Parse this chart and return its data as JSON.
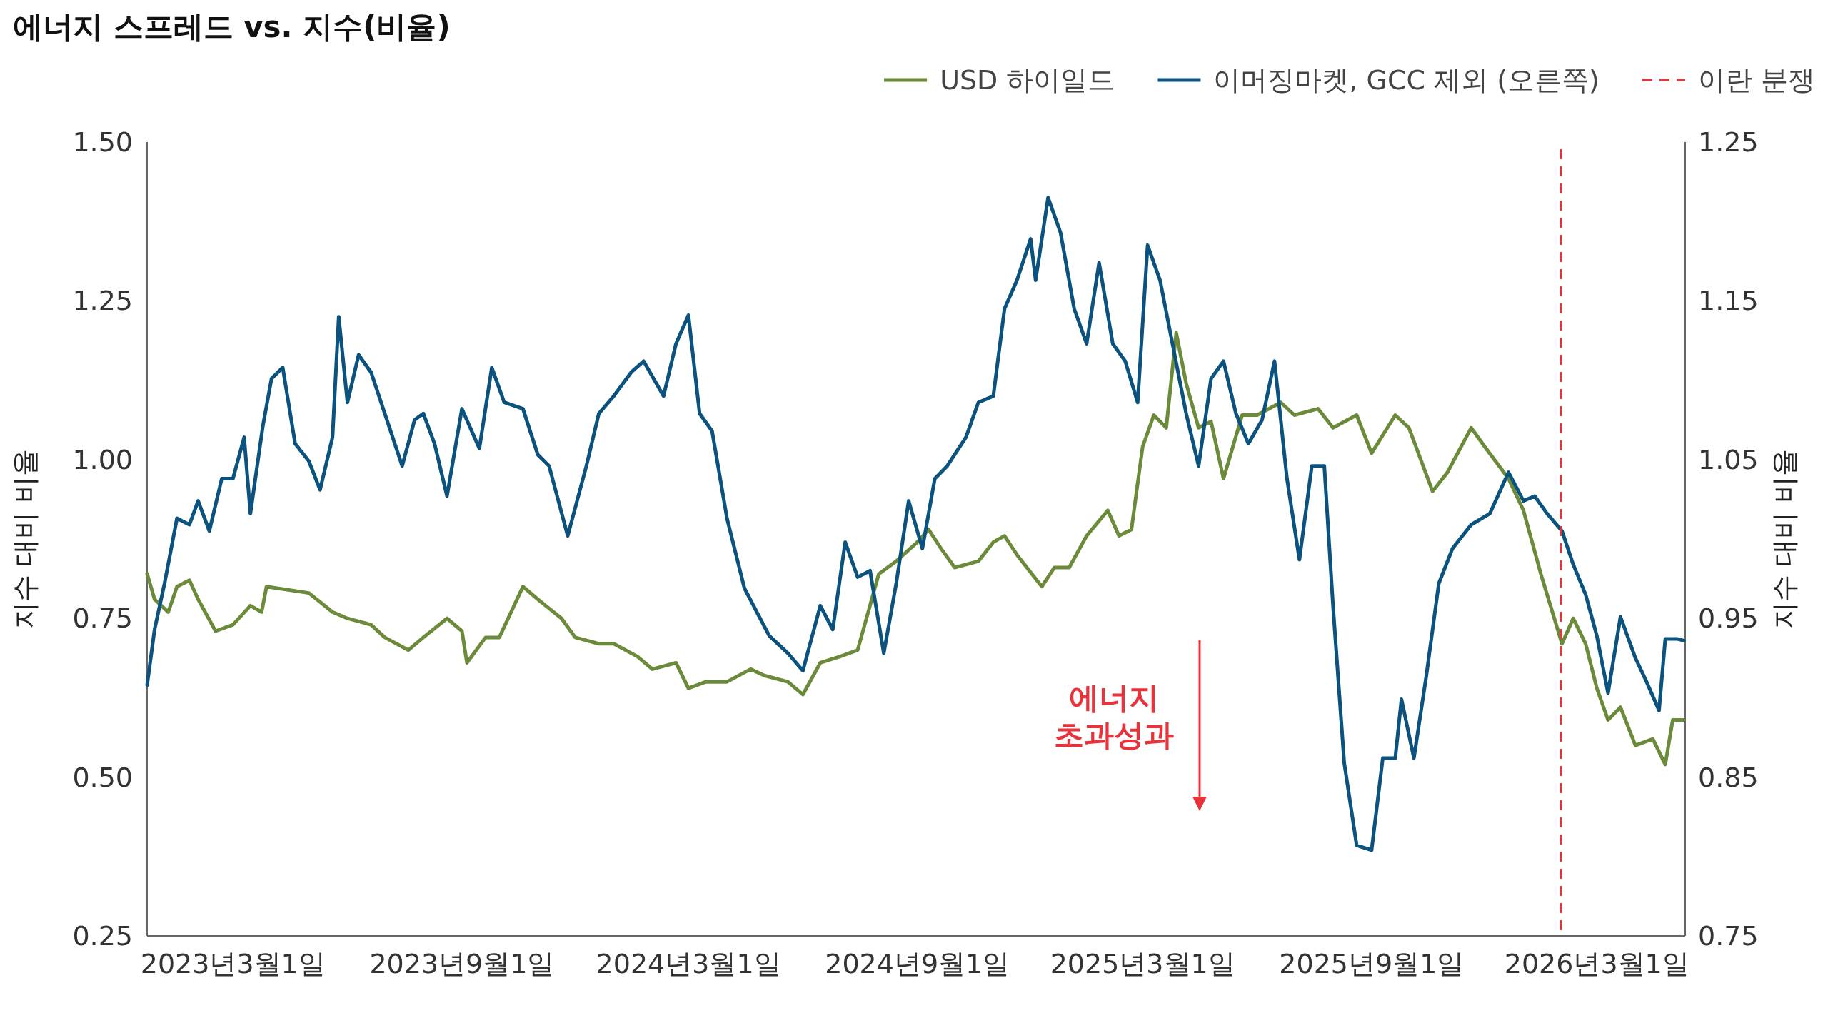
{
  "chart_data": {
    "type": "line",
    "title": "에너지 스프레드 vs. 지수(비율)",
    "ylabel": "지수 대비 비율",
    "y2label": "지수 대비 비율",
    "xlim": [
      "2022-12-22",
      "2026-05-11"
    ],
    "xticks": [
      {
        "value": "2023-03-01",
        "label": "2023년3월1일"
      },
      {
        "value": "2023-09-01",
        "label": "2023년9월1일"
      },
      {
        "value": "2024-03-01",
        "label": "2024년3월1일"
      },
      {
        "value": "2024-09-01",
        "label": "2024년9월1일"
      },
      {
        "value": "2025-03-01",
        "label": "2025년3월1일"
      },
      {
        "value": "2025-09-01",
        "label": "2025년9월1일"
      },
      {
        "value": "2026-03-01",
        "label": "2026년3월1일"
      }
    ],
    "ylim": [
      0.25,
      1.5
    ],
    "yticks": [
      0.25,
      {
        "value": 0.5,
        "label": "0.50"
      },
      0.75,
      {
        "value": 1.0,
        "label": "1.00"
      },
      1.25,
      {
        "value": 1.5,
        "label": "1.50"
      }
    ],
    "y2lim": [
      0.75,
      1.25
    ],
    "y2ticks": [
      0.75,
      0.85,
      0.95,
      1.05,
      1.15,
      1.25
    ],
    "legend": "top right",
    "series": [
      {
        "name": "USD 하이일드",
        "color": "#6b8a3a",
        "x": [
          "2022-12-22",
          "2022-12-28",
          "2023-01-08",
          "2023-01-15",
          "2023-01-25",
          "2023-02-01",
          "2023-02-15",
          "2023-03-01",
          "2023-03-15",
          "2023-03-24",
          "2023-03-28",
          "2023-05-01",
          "2023-05-20",
          "2023-06-01",
          "2023-06-20",
          "2023-07-01",
          "2023-07-20",
          "2023-08-01",
          "2023-08-20",
          "2023-09-01",
          "2023-09-05",
          "2023-09-20",
          "2023-10-01",
          "2023-10-20",
          "2023-11-01",
          "2023-11-20",
          "2023-12-01",
          "2023-12-20",
          "2024-01-01",
          "2024-01-20",
          "2024-02-01",
          "2024-02-20",
          "2024-03-01",
          "2024-03-15",
          "2024-04-01",
          "2024-04-20",
          "2024-05-01",
          "2024-05-20",
          "2024-06-01",
          "2024-06-15",
          "2024-07-01",
          "2024-07-15",
          "2024-08-01",
          "2024-08-15",
          "2024-09-01",
          "2024-09-10",
          "2024-09-20",
          "2024-10-01",
          "2024-10-20",
          "2024-11-01",
          "2024-11-10",
          "2024-11-20",
          "2024-12-10",
          "2024-12-20",
          "2025-01-01",
          "2025-01-15",
          "2025-02-01",
          "2025-02-10",
          "2025-02-20",
          "2025-03-01",
          "2025-03-10",
          "2025-03-20",
          "2025-03-28",
          "2025-04-05",
          "2025-04-15",
          "2025-04-25",
          "2025-05-05",
          "2025-05-20",
          "2025-06-01",
          "2025-06-20",
          "2025-07-01",
          "2025-07-20",
          "2025-08-01",
          "2025-08-20",
          "2025-09-01",
          "2025-09-20",
          "2025-10-01",
          "2025-10-20",
          "2025-11-01",
          "2025-11-20",
          "2025-12-01",
          "2025-12-20",
          "2026-01-01",
          "2026-01-15",
          "2026-02-01",
          "2026-02-10",
          "2026-02-20",
          "2026-03-01",
          "2026-03-10",
          "2026-03-20",
          "2026-04-01",
          "2026-04-15",
          "2026-04-25",
          "2026-05-01",
          "2026-05-10"
        ],
        "values": [
          0.82,
          0.78,
          0.76,
          0.8,
          0.81,
          0.78,
          0.73,
          0.74,
          0.77,
          0.76,
          0.8,
          0.79,
          0.76,
          0.75,
          0.74,
          0.72,
          0.7,
          0.72,
          0.75,
          0.73,
          0.68,
          0.72,
          0.72,
          0.8,
          0.78,
          0.75,
          0.72,
          0.71,
          0.71,
          0.69,
          0.67,
          0.68,
          0.64,
          0.65,
          0.65,
          0.67,
          0.66,
          0.65,
          0.63,
          0.68,
          0.69,
          0.7,
          0.82,
          0.84,
          0.87,
          0.89,
          0.86,
          0.83,
          0.84,
          0.87,
          0.88,
          0.85,
          0.8,
          0.83,
          0.83,
          0.88,
          0.92,
          0.88,
          0.89,
          1.02,
          1.07,
          1.05,
          1.2,
          1.12,
          1.05,
          1.06,
          0.97,
          1.07,
          1.07,
          1.09,
          1.07,
          1.08,
          1.05,
          1.07,
          1.01,
          1.07,
          1.05,
          0.95,
          0.98,
          1.05,
          1.02,
          0.97,
          0.92,
          0.82,
          0.71,
          0.75,
          0.71,
          0.64,
          0.59,
          0.61,
          0.55,
          0.56,
          0.52,
          0.59,
          0.59
        ]
      },
      {
        "name": "이머징마켓, GCC 제외 (오른쪽)",
        "color": "#0b527f",
        "axis": "y2",
        "x": [
          "2022-12-22",
          "2022-12-28",
          "2023-01-05",
          "2023-01-15",
          "2023-01-25",
          "2023-02-01",
          "2023-02-10",
          "2023-02-20",
          "2023-03-01",
          "2023-03-10",
          "2023-03-15",
          "2023-03-25",
          "2023-04-01",
          "2023-04-10",
          "2023-04-20",
          "2023-05-01",
          "2023-05-10",
          "2023-05-20",
          "2023-05-25",
          "2023-06-01",
          "2023-06-10",
          "2023-06-20",
          "2023-07-01",
          "2023-07-15",
          "2023-07-25",
          "2023-08-01",
          "2023-08-10",
          "2023-08-20",
          "2023-09-01",
          "2023-09-15",
          "2023-09-25",
          "2023-10-05",
          "2023-10-20",
          "2023-11-01",
          "2023-11-10",
          "2023-11-25",
          "2023-12-10",
          "2023-12-20",
          "2024-01-01",
          "2024-01-15",
          "2024-01-25",
          "2024-02-10",
          "2024-02-20",
          "2024-03-01",
          "2024-03-10",
          "2024-03-20",
          "2024-04-01",
          "2024-04-15",
          "2024-04-25",
          "2024-05-05",
          "2024-05-20",
          "2024-06-01",
          "2024-06-15",
          "2024-06-25",
          "2024-07-05",
          "2024-07-15",
          "2024-07-25",
          "2024-08-05",
          "2024-08-15",
          "2024-08-25",
          "2024-09-05",
          "2024-09-15",
          "2024-09-25",
          "2024-10-10",
          "2024-10-20",
          "2024-11-01",
          "2024-11-10",
          "2024-11-20",
          "2024-12-01",
          "2024-12-05",
          "2024-12-15",
          "2024-12-25",
          "2025-01-05",
          "2025-01-15",
          "2025-01-25",
          "2025-02-05",
          "2025-02-15",
          "2025-02-25",
          "2025-03-05",
          "2025-03-15",
          "2025-03-25",
          "2025-04-05",
          "2025-04-15",
          "2025-04-25",
          "2025-05-05",
          "2025-05-15",
          "2025-05-25",
          "2025-06-05",
          "2025-06-15",
          "2025-06-20",
          "2025-06-25",
          "2025-07-05",
          "2025-07-15",
          "2025-07-25",
          "2025-08-01",
          "2025-08-10",
          "2025-08-20",
          "2025-09-01",
          "2025-09-10",
          "2025-09-20",
          "2025-09-25",
          "2025-10-05",
          "2025-10-15",
          "2025-10-25",
          "2025-11-05",
          "2025-11-20",
          "2025-12-05",
          "2025-12-20",
          "2026-01-01",
          "2026-01-10",
          "2026-01-20",
          "2026-02-01",
          "2026-02-10",
          "2026-02-20",
          "2026-03-01",
          "2026-03-10",
          "2026-03-20",
          "2026-04-01",
          "2026-04-10",
          "2026-04-20",
          "2026-04-25",
          "2026-05-05",
          "2026-05-10"
        ],
        "values": [
          0.908,
          0.943,
          0.972,
          1.013,
          1.009,
          1.024,
          1.005,
          1.038,
          1.038,
          1.064,
          1.016,
          1.071,
          1.101,
          1.108,
          1.06,
          1.049,
          1.031,
          1.064,
          1.14,
          1.086,
          1.116,
          1.105,
          1.079,
          1.046,
          1.075,
          1.079,
          1.06,
          1.027,
          1.082,
          1.057,
          1.108,
          1.086,
          1.082,
          1.053,
          1.046,
          1.002,
          1.046,
          1.079,
          1.09,
          1.105,
          1.112,
          1.09,
          1.123,
          1.141,
          1.079,
          1.068,
          1.013,
          0.969,
          0.954,
          0.939,
          0.928,
          0.917,
          0.958,
          0.943,
          0.998,
          0.976,
          0.98,
          0.928,
          0.972,
          1.024,
          0.994,
          1.038,
          1.046,
          1.064,
          1.086,
          1.09,
          1.145,
          1.163,
          1.189,
          1.163,
          1.215,
          1.193,
          1.145,
          1.123,
          1.174,
          1.123,
          1.112,
          1.086,
          1.185,
          1.163,
          1.123,
          1.079,
          1.046,
          1.101,
          1.112,
          1.079,
          1.06,
          1.075,
          1.112,
          1.075,
          1.038,
          0.987,
          1.046,
          1.046,
          0.958,
          0.859,
          0.807,
          0.804,
          0.862,
          0.862,
          0.899,
          0.862,
          0.914,
          0.972,
          0.994,
          1.009,
          1.016,
          1.042,
          1.024,
          1.027,
          1.016,
          1.005,
          0.984,
          0.965,
          0.939,
          0.903,
          0.951,
          0.925,
          0.91,
          0.892,
          0.937,
          0.937,
          0.936
        ]
      }
    ],
    "ref_lines": [
      {
        "axis": "x",
        "value": "2026-01-31",
        "label": "이란 분쟁",
        "color": "#e8333d",
        "line_style": "dashed"
      }
    ],
    "annotations": [
      "에너지 초과성과"
    ]
  }
}
